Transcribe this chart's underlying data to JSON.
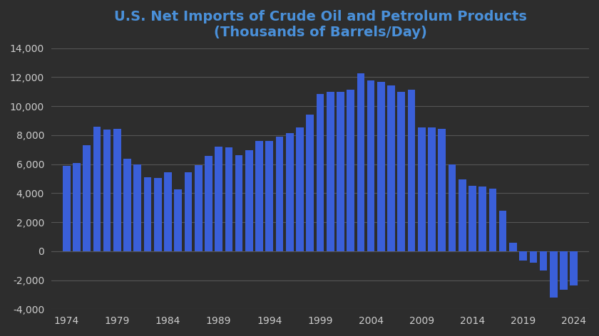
{
  "title_line1": "U.S. Net Imports of Crude Oil and Petrolum Products",
  "title_line2": "(Thousands of Barrels/Day)",
  "years": [
    1974,
    1975,
    1976,
    1977,
    1978,
    1979,
    1980,
    1981,
    1982,
    1983,
    1984,
    1985,
    1986,
    1987,
    1988,
    1989,
    1990,
    1991,
    1992,
    1993,
    1994,
    1995,
    1996,
    1997,
    1998,
    1999,
    2000,
    2001,
    2002,
    2003,
    2004,
    2005,
    2006,
    2007,
    2008,
    2009,
    2010,
    2011,
    2012,
    2013,
    2014,
    2015,
    2016,
    2017,
    2018,
    2019,
    2020,
    2021,
    2022,
    2023,
    2024
  ],
  "values": [
    5893,
    6056,
    7313,
    8565,
    8363,
    8456,
    6365,
    5996,
    5113,
    5051,
    5437,
    4285,
    5439,
    5912,
    6587,
    7202,
    7161,
    6626,
    6941,
    7620,
    7610,
    7905,
    8128,
    8521,
    9430,
    10851,
    10982,
    10969,
    11141,
    12264,
    11756,
    11652,
    11436,
    10999,
    11117,
    8512,
    8519,
    8436,
    5995,
    4973,
    4529,
    4471,
    4335,
    2800,
    590,
    -625,
    -785,
    -1330,
    -3180,
    -2680,
    -2380
  ],
  "bar_color": "#3a5fd9",
  "background_color": "#2d2d2d",
  "plot_bg_color": "#2d2d2d",
  "grid_color": "#555555",
  "title_color": "#4a90d9",
  "tick_label_color": "#cccccc",
  "ylim": [
    -4000,
    14000
  ],
  "ytick_step": 2000,
  "title_fontsize": 14,
  "tick_fontsize": 10,
  "xticks": [
    1974,
    1979,
    1984,
    1989,
    1994,
    1999,
    2004,
    2009,
    2014,
    2019,
    2024
  ]
}
